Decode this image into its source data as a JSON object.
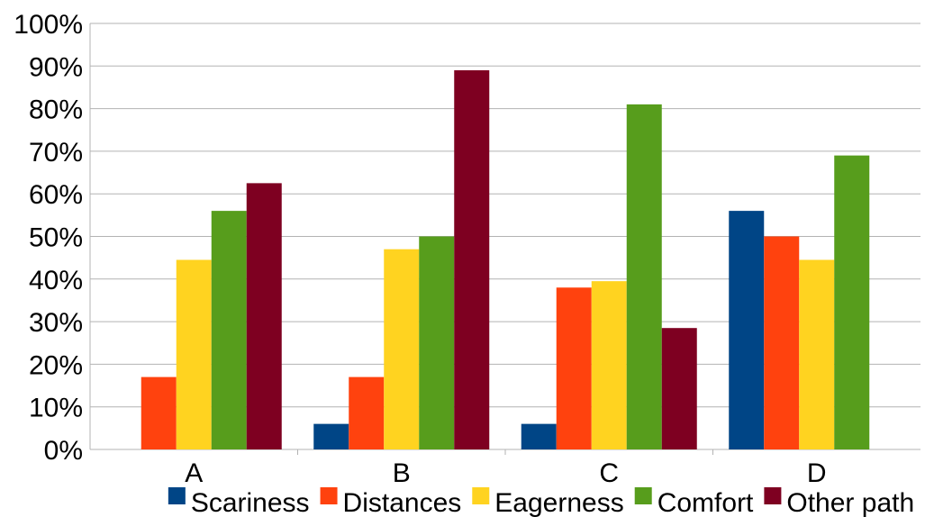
{
  "chart_data": {
    "type": "bar",
    "title": "",
    "xlabel": "",
    "ylabel": "",
    "categories": [
      "A",
      "B",
      "C",
      "D"
    ],
    "ylim": [
      0,
      100
    ],
    "y_ticks": [
      "0%",
      "10%",
      "20%",
      "30%",
      "40%",
      "50%",
      "60%",
      "70%",
      "80%",
      "90%",
      "100%"
    ],
    "grid": true,
    "legend_position": "bottom",
    "series": [
      {
        "name": "Scariness",
        "color": "#004586",
        "values": [
          0,
          6,
          6,
          56
        ]
      },
      {
        "name": "Distances",
        "color": "#ff420e",
        "values": [
          17,
          17,
          38,
          50
        ]
      },
      {
        "name": "Eagerness",
        "color": "#ffd320",
        "values": [
          44.5,
          47,
          39.5,
          44.5
        ]
      },
      {
        "name": "Comfort",
        "color": "#579d1c",
        "values": [
          56,
          50,
          81,
          69
        ]
      },
      {
        "name": "Other path",
        "color": "#7e0021",
        "values": [
          62.5,
          89,
          28.5,
          0
        ]
      }
    ]
  }
}
